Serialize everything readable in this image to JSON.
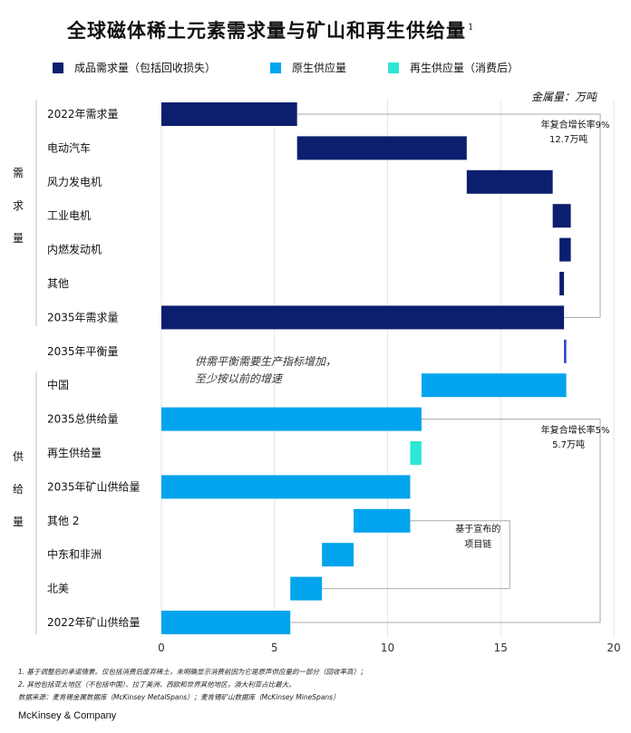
{
  "title": "全球磁体稀土元素需求量与矿山和再生供给量",
  "title_sup": "1",
  "legend": [
    {
      "label": "成品需求量（包括回收损失）",
      "color": "#0b1f6e"
    },
    {
      "label": "原生供应量",
      "color": "#02a4ed"
    },
    {
      "label": "再生供应量（消费后）",
      "color": "#2ee6d6"
    }
  ],
  "unit_label": "金属量：万吨",
  "group_labels": {
    "demand": "需求量",
    "supply": "供给量"
  },
  "colors": {
    "demand": "#0b1f6e",
    "primary": "#02a4ed",
    "recycled": "#2ee6d6",
    "balance": "#2c3fd1"
  },
  "chart_data": {
    "type": "bar",
    "orientation": "horizontal",
    "subtype": "waterfall",
    "xlim": [
      0,
      20
    ],
    "xticks": [
      0,
      5,
      10,
      15,
      20
    ],
    "bars": [
      {
        "label": "2022年需求量",
        "start": 0,
        "end": 6.0,
        "kind": "demand"
      },
      {
        "label": "电动汽车",
        "start": 6.0,
        "end": 13.5,
        "kind": "demand"
      },
      {
        "label": "风力发电机",
        "start": 13.5,
        "end": 17.3,
        "kind": "demand"
      },
      {
        "label": "工业电机",
        "start": 17.3,
        "end": 18.1,
        "kind": "demand"
      },
      {
        "label": "内燃发动机",
        "start": 17.6,
        "end": 18.1,
        "kind": "demand"
      },
      {
        "label": "其他",
        "start": 17.6,
        "end": 17.8,
        "kind": "demand"
      },
      {
        "label": "2035年需求量",
        "start": 0,
        "end": 17.8,
        "kind": "demand"
      },
      {
        "label": "2035年平衡量",
        "start": 17.8,
        "end": 17.9,
        "kind": "balance"
      },
      {
        "label": "中国",
        "start": 11.5,
        "end": 17.9,
        "kind": "primary"
      },
      {
        "label": "2035总供给量",
        "start": 0,
        "end": 11.5,
        "kind": "primary"
      },
      {
        "label": "再生供给量",
        "start": 11.0,
        "end": 11.5,
        "kind": "recycled"
      },
      {
        "label": "2035年矿山供给量",
        "start": 0,
        "end": 11.0,
        "kind": "primary"
      },
      {
        "label": "其他 2",
        "start": 8.5,
        "end": 11.0,
        "kind": "primary"
      },
      {
        "label": "中东和非洲",
        "start": 7.1,
        "end": 8.5,
        "kind": "primary"
      },
      {
        "label": "北美",
        "start": 5.7,
        "end": 7.1,
        "kind": "primary"
      },
      {
        "label": "2022年矿山供给量",
        "start": 0,
        "end": 5.7,
        "kind": "primary"
      }
    ],
    "annotations": {
      "demand_cagr": [
        "年复合增长率9%",
        "12.7万吨"
      ],
      "supply_cagr": [
        "年复合增长率5%",
        "5.7万吨"
      ],
      "projects": [
        "基于宣布的",
        "项目链"
      ],
      "balance_note": [
        "供需平衡需要生产指标增加，",
        "至少按以前的增速"
      ]
    }
  },
  "footnotes": [
    "1. 基于调整后的承诺情景。仅包括消费后废弃稀土，未明确显示消费前因为它是原声供应量的一部分（回收率高）；",
    "2. 其他包括亚太地区（不包括中国）、拉丁美洲、西欧和世界其他地区，澳大利亚占比最大。",
    "数据来源：麦肯锡金属数据库（McKinsey MetalSpans）；麦肯锡矿山数据库（McKinsey MineSpans）"
  ],
  "brand": "McKinsey & Company"
}
